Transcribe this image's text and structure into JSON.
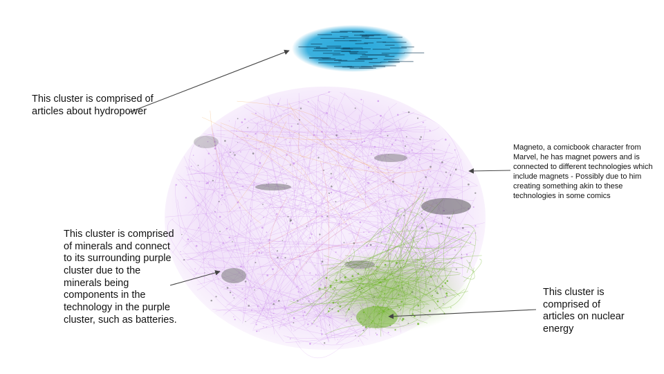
{
  "annotations": {
    "hydropower": "This cluster is comprised of articles about hydropower",
    "magneto": "Magneto, a comicbook character from Marvel, he has magnet powers and is connected to different technologies which include magnets - Possibly due to him creating something akin to these technologies in some comics",
    "minerals": "This cluster is comprised of minerals and connect to its surrounding purple cluster due to the minerals being components in the technology in the purple cluster, such as batteries.",
    "nuclear": "This cluster is comprised of articles on nuclear energy"
  },
  "colors": {
    "hydropower_cluster": "#1aa3d9",
    "technology_cluster": "#c27be8",
    "nuclear_cluster": "#6fb52a",
    "minerals_cluster": "#7a7a7a",
    "magneto_cluster": "#5a5a5a",
    "accent_orange": "#f0a050",
    "accent_red": "#e05050",
    "arrow": "#444444"
  }
}
